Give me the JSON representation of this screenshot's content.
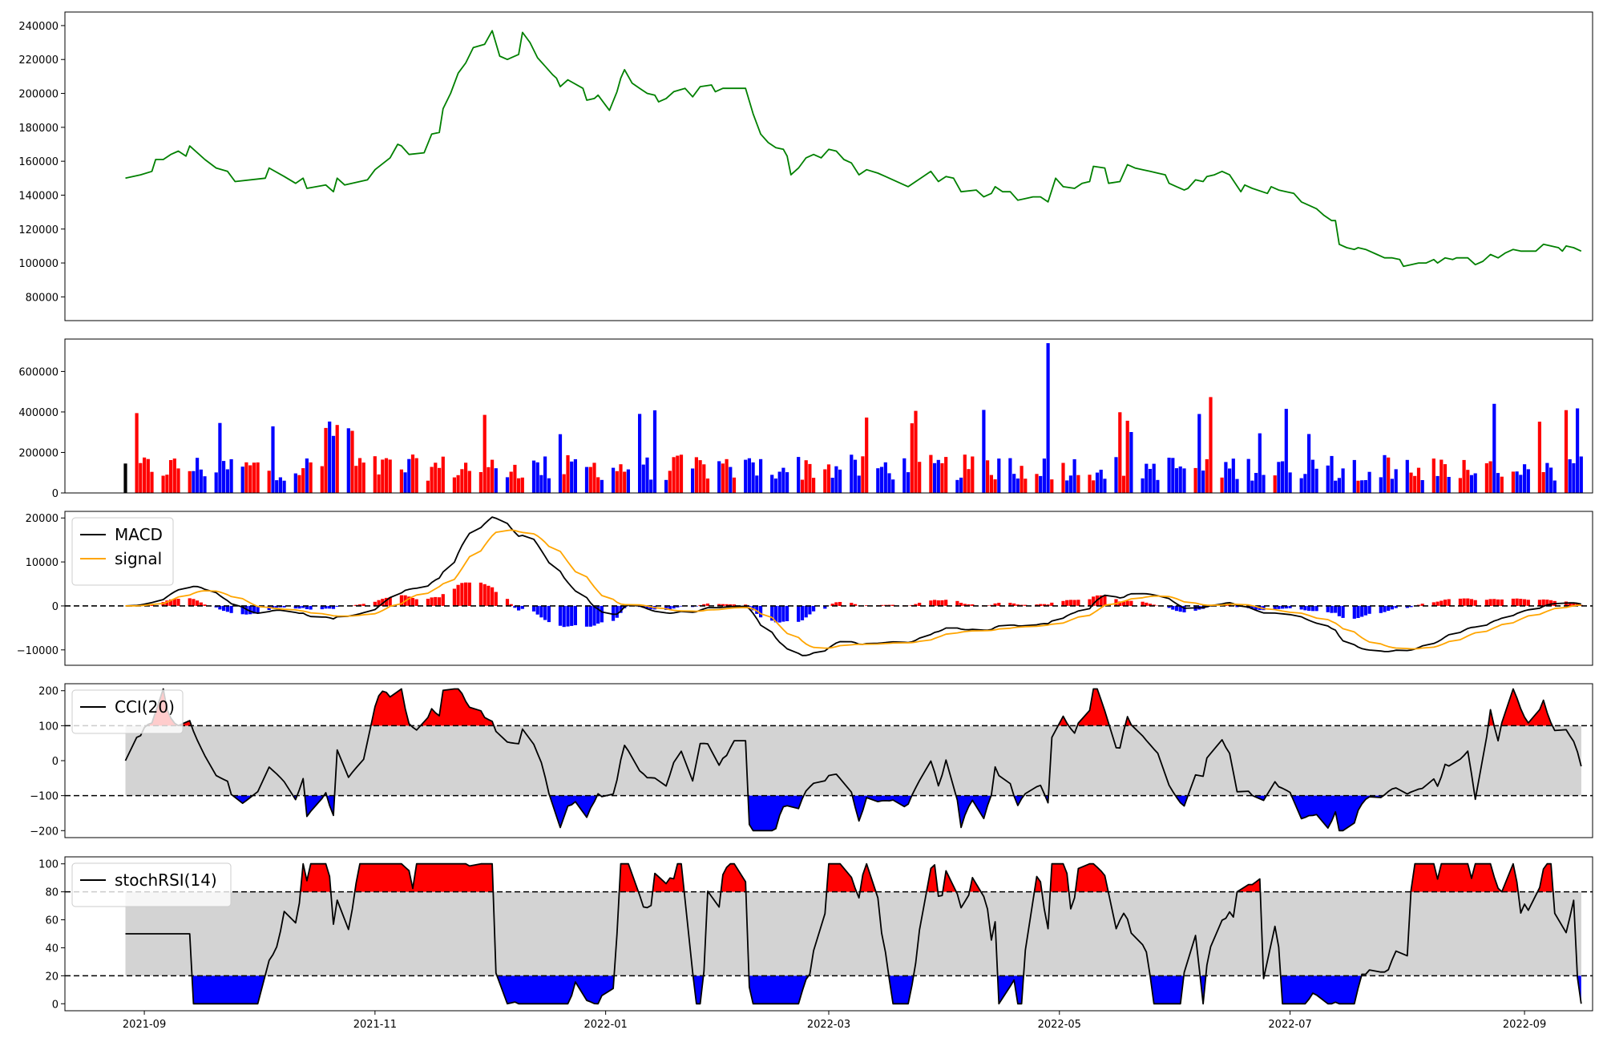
{
  "chart_data": [
    {
      "id": "price",
      "type": "line",
      "color": "#008000",
      "ylim": [
        66000,
        248000
      ],
      "yticks": [
        80000,
        100000,
        120000,
        140000,
        160000,
        180000,
        200000,
        220000,
        240000
      ],
      "x_range": [
        "2021-08-11",
        "2022-09-19"
      ],
      "series": [
        {
          "values": [
            [
              "2021-08-27",
              150000
            ],
            [
              "2021-08-31",
              152000
            ],
            [
              "2021-09-03",
              154000
            ],
            [
              "2021-09-04",
              161000
            ],
            [
              "2021-09-06",
              161000
            ],
            [
              "2021-09-08",
              164000
            ],
            [
              "2021-09-10",
              166000
            ],
            [
              "2021-09-12",
              163000
            ],
            [
              "2021-09-13",
              169000
            ],
            [
              "2021-09-17",
              161000
            ],
            [
              "2021-09-20",
              156000
            ],
            [
              "2021-09-23",
              154000
            ],
            [
              "2021-09-25",
              148000
            ],
            [
              "2021-10-03",
              150000
            ],
            [
              "2021-10-04",
              156000
            ],
            [
              "2021-10-08",
              151000
            ],
            [
              "2021-10-11",
              147000
            ],
            [
              "2021-10-13",
              150000
            ],
            [
              "2021-10-14",
              144000
            ],
            [
              "2021-10-19",
              146000
            ],
            [
              "2021-10-21",
              142000
            ],
            [
              "2021-10-22",
              150000
            ],
            [
              "2021-10-24",
              146000
            ],
            [
              "2021-10-30",
              149000
            ],
            [
              "2021-11-01",
              155000
            ],
            [
              "2021-11-05",
              162000
            ],
            [
              "2021-11-07",
              170000
            ],
            [
              "2021-11-08",
              169000
            ],
            [
              "2021-11-10",
              164000
            ],
            [
              "2021-11-14",
              165000
            ],
            [
              "2021-11-16",
              176000
            ],
            [
              "2021-11-18",
              177000
            ],
            [
              "2021-11-19",
              191000
            ],
            [
              "2021-11-21",
              200000
            ],
            [
              "2021-11-23",
              212000
            ],
            [
              "2021-11-25",
              218000
            ],
            [
              "2021-11-27",
              227000
            ],
            [
              "2021-11-30",
              229000
            ],
            [
              "2021-12-02",
              237000
            ],
            [
              "2021-12-04",
              222000
            ],
            [
              "2021-12-06",
              220000
            ],
            [
              "2021-12-07",
              221000
            ],
            [
              "2021-12-09",
              223000
            ],
            [
              "2021-12-10",
              236000
            ],
            [
              "2021-12-12",
              230000
            ],
            [
              "2021-12-14",
              221000
            ],
            [
              "2021-12-16",
              216000
            ],
            [
              "2021-12-18",
              211000
            ],
            [
              "2021-12-19",
              209000
            ],
            [
              "2021-12-20",
              204000
            ],
            [
              "2021-12-22",
              208000
            ],
            [
              "2021-12-26",
              203000
            ],
            [
              "2021-12-27",
              196000
            ],
            [
              "2021-12-29",
              197000
            ],
            [
              "2021-12-30",
              199000
            ],
            [
              "2022-01-01",
              193000
            ],
            [
              "2022-01-02",
              190000
            ],
            [
              "2022-01-04",
              201000
            ],
            [
              "2022-01-05",
              209000
            ],
            [
              "2022-01-06",
              214000
            ],
            [
              "2022-01-08",
              206000
            ],
            [
              "2022-01-10",
              203000
            ],
            [
              "2022-01-12",
              200000
            ],
            [
              "2022-01-14",
              199000
            ],
            [
              "2022-01-15",
              195000
            ],
            [
              "2022-01-17",
              197000
            ],
            [
              "2022-01-19",
              201000
            ],
            [
              "2022-01-22",
              203000
            ],
            [
              "2022-01-24",
              198000
            ],
            [
              "2022-01-26",
              204000
            ],
            [
              "2022-01-29",
              205000
            ],
            [
              "2022-01-30",
              201000
            ],
            [
              "2022-02-01",
              203000
            ],
            [
              "2022-02-07",
              203000
            ],
            [
              "2022-02-09",
              188000
            ],
            [
              "2022-02-11",
              176000
            ],
            [
              "2022-02-13",
              171000
            ],
            [
              "2022-02-15",
              168000
            ],
            [
              "2022-02-17",
              167000
            ],
            [
              "2022-02-18",
              163000
            ],
            [
              "2022-02-19",
              152000
            ],
            [
              "2022-02-21",
              156000
            ],
            [
              "2022-02-23",
              162000
            ],
            [
              "2022-02-25",
              164000
            ],
            [
              "2022-02-27",
              162000
            ],
            [
              "2022-03-01",
              167000
            ],
            [
              "2022-03-03",
              166000
            ],
            [
              "2022-03-05",
              161000
            ],
            [
              "2022-03-07",
              159000
            ],
            [
              "2022-03-09",
              152000
            ],
            [
              "2022-03-11",
              155000
            ],
            [
              "2022-03-14",
              153000
            ],
            [
              "2022-03-16",
              151000
            ],
            [
              "2022-03-18",
              149000
            ],
            [
              "2022-03-20",
              147000
            ],
            [
              "2022-03-22",
              145000
            ],
            [
              "2022-03-24",
              148000
            ],
            [
              "2022-03-28",
              154000
            ],
            [
              "2022-03-30",
              148000
            ],
            [
              "2022-04-01",
              151000
            ],
            [
              "2022-04-03",
              150000
            ],
            [
              "2022-04-05",
              142000
            ],
            [
              "2022-04-09",
              143000
            ],
            [
              "2022-04-11",
              139000
            ],
            [
              "2022-04-13",
              141000
            ],
            [
              "2022-04-14",
              145000
            ],
            [
              "2022-04-16",
              142000
            ],
            [
              "2022-04-18",
              142000
            ],
            [
              "2022-04-20",
              137000
            ],
            [
              "2022-04-22",
              138000
            ],
            [
              "2022-04-24",
              139000
            ],
            [
              "2022-04-26",
              139000
            ],
            [
              "2022-04-28",
              136000
            ],
            [
              "2022-04-30",
              150000
            ],
            [
              "2022-05-02",
              145000
            ],
            [
              "2022-05-05",
              144000
            ],
            [
              "2022-05-07",
              147000
            ],
            [
              "2022-05-09",
              148000
            ],
            [
              "2022-05-10",
              157000
            ],
            [
              "2022-05-13",
              156000
            ],
            [
              "2022-05-14",
              147000
            ],
            [
              "2022-05-17",
              148000
            ],
            [
              "2022-05-19",
              158000
            ],
            [
              "2022-05-21",
              156000
            ],
            [
              "2022-05-23",
              155000
            ],
            [
              "2022-05-25",
              154000
            ],
            [
              "2022-05-27",
              153000
            ],
            [
              "2022-05-29",
              152000
            ],
            [
              "2022-05-30",
              147000
            ],
            [
              "2022-06-01",
              145000
            ],
            [
              "2022-06-03",
              143000
            ],
            [
              "2022-06-04",
              144000
            ],
            [
              "2022-06-06",
              149000
            ],
            [
              "2022-06-08",
              148000
            ],
            [
              "2022-06-09",
              151000
            ],
            [
              "2022-06-11",
              152000
            ],
            [
              "2022-06-13",
              154000
            ],
            [
              "2022-06-15",
              152000
            ],
            [
              "2022-06-18",
              142000
            ],
            [
              "2022-06-19",
              146000
            ],
            [
              "2022-06-21",
              144000
            ],
            [
              "2022-06-25",
              141000
            ],
            [
              "2022-06-26",
              145000
            ],
            [
              "2022-06-28",
              143000
            ],
            [
              "2022-06-30",
              142000
            ],
            [
              "2022-07-02",
              141000
            ],
            [
              "2022-07-04",
              136000
            ],
            [
              "2022-07-08",
              132000
            ],
            [
              "2022-07-10",
              128000
            ],
            [
              "2022-07-12",
              125000
            ],
            [
              "2022-07-13",
              125000
            ],
            [
              "2022-07-14",
              111000
            ],
            [
              "2022-07-16",
              109000
            ],
            [
              "2022-07-18",
              108000
            ],
            [
              "2022-07-19",
              109000
            ],
            [
              "2022-07-21",
              108000
            ],
            [
              "2022-07-24",
              105000
            ],
            [
              "2022-07-26",
              103000
            ],
            [
              "2022-07-28",
              103000
            ],
            [
              "2022-07-30",
              102000
            ],
            [
              "2022-07-31",
              98000
            ],
            [
              "2022-08-02",
              99000
            ],
            [
              "2022-08-04",
              100000
            ],
            [
              "2022-08-06",
              100000
            ],
            [
              "2022-08-08",
              102000
            ],
            [
              "2022-08-09",
              100000
            ],
            [
              "2022-08-11",
              103000
            ],
            [
              "2022-08-13",
              102000
            ],
            [
              "2022-08-14",
              103000
            ],
            [
              "2022-08-17",
              103000
            ],
            [
              "2022-08-19",
              99000
            ],
            [
              "2022-08-21",
              101000
            ],
            [
              "2022-08-23",
              105000
            ],
            [
              "2022-08-25",
              103000
            ],
            [
              "2022-08-27",
              106000
            ],
            [
              "2022-08-29",
              108000
            ],
            [
              "2022-08-31",
              107000
            ],
            [
              "2022-09-02",
              107000
            ],
            [
              "2022-09-04",
              107000
            ],
            [
              "2022-09-06",
              111000
            ],
            [
              "2022-09-08",
              110000
            ],
            [
              "2022-09-10",
              109000
            ],
            [
              "2022-09-11",
              107000
            ],
            [
              "2022-09-12",
              110000
            ],
            [
              "2022-09-14",
              109000
            ],
            [
              "2022-09-16",
              107000
            ]
          ]
        }
      ]
    },
    {
      "id": "volume",
      "type": "bar",
      "ylim": [
        0,
        760000
      ],
      "yticks": [
        0,
        200000,
        400000,
        600000
      ],
      "colors": {
        "up": "#ff0000",
        "down": "#0000ff",
        "flat": "#000000"
      }
    },
    {
      "id": "macd",
      "type": "line",
      "ylim": [
        -13500,
        21500
      ],
      "yticks": [
        -10000,
        0,
        10000,
        20000
      ],
      "reference_lines": [
        0
      ],
      "series": [
        {
          "name": "MACD",
          "color": "#000000"
        },
        {
          "name": "signal",
          "color": "#ffa500"
        }
      ],
      "histogram_colors": {
        "positive": "#ff0000",
        "negative": "#0000ff"
      }
    },
    {
      "id": "cci",
      "type": "line",
      "ylim": [
        -220,
        220
      ],
      "yticks": [
        -200,
        -100,
        0,
        100,
        200
      ],
      "reference_lines": [
        -100,
        100
      ],
      "band": [
        -100,
        100
      ],
      "series": [
        {
          "name": "CCI(20)",
          "color": "#000000"
        }
      ],
      "fill_colors": {
        "above": "#ff0000",
        "below": "#0000ff",
        "band": "#d3d3d3"
      }
    },
    {
      "id": "stochrsi",
      "type": "line",
      "ylim": [
        -5,
        105
      ],
      "yticks": [
        0,
        20,
        40,
        60,
        80,
        100
      ],
      "reference_lines": [
        20,
        80
      ],
      "band": [
        20,
        80
      ],
      "series": [
        {
          "name": "stochRSI(14)",
          "color": "#000000"
        }
      ],
      "fill_colors": {
        "above": "#ff0000",
        "below": "#0000ff",
        "band": "#d3d3d3"
      }
    }
  ],
  "x_ticks": [
    "2021-09",
    "2021-11",
    "2022-01",
    "2022-03",
    "2022-05",
    "2022-07",
    "2022-09"
  ]
}
